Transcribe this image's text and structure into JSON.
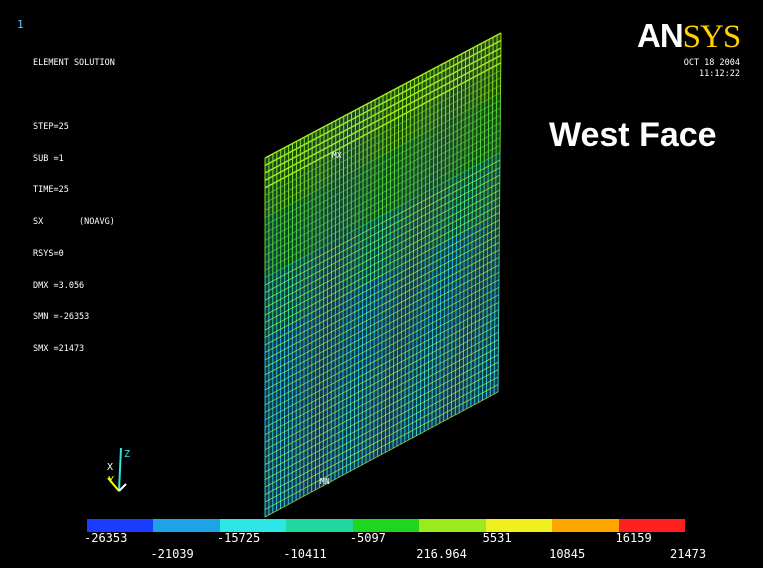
{
  "window_number": "1",
  "info_lines": [
    "ELEMENT SOLUTION",
    "",
    "STEP=25",
    "SUB =1",
    "TIME=25",
    "SX       (NOAVG)",
    "RSYS=0",
    "DMX =3.056",
    "SMN =-26353",
    "SMX =21473"
  ],
  "logo": {
    "part1": "AN",
    "part2": "SYS"
  },
  "date": "OCT 18 2004",
  "time": "11:12:22",
  "face_label": "West Face",
  "mx_label": "MX",
  "mn_label": "MN",
  "triad": {
    "x": "X",
    "y": "Y",
    "z": "Z"
  },
  "legend": {
    "colors": [
      "#1a3cff",
      "#1fa3e8",
      "#2de6e6",
      "#21d9a0",
      "#1fd61f",
      "#9bea1e",
      "#f0f020",
      "#ffa500",
      "#ff2020"
    ],
    "top_labels": [
      "-26353",
      "-15725",
      "-5097",
      "5531",
      "16159"
    ],
    "bottom_labels": [
      "-21039",
      "-10411",
      "216.964",
      "10845",
      "21473"
    ]
  }
}
